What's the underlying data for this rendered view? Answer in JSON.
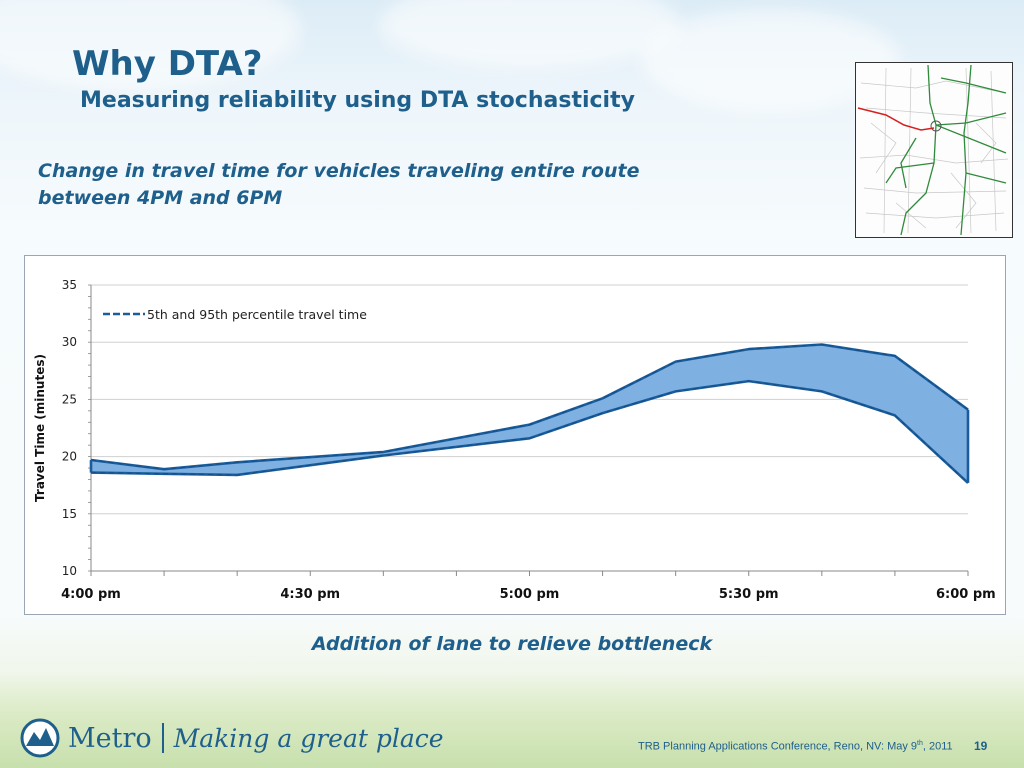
{
  "slide": {
    "title": "Why DTA?",
    "subtitle": "Measuring reliability using DTA stochasticity",
    "caption": "Change in travel time for vehicles traveling entire route between 4PM and 6PM",
    "bottleneck_note": "Addition of lane to relieve bottleneck",
    "footer": {
      "brand": "Metro",
      "tagline": "Making a great place",
      "conference_prefix": "TRB Planning Applications Conference,  Reno, NV: May 9",
      "conference_sup": "th",
      "conference_suffix": ", 2011",
      "page_number": "19"
    },
    "colors": {
      "title": "#1f5f8b",
      "band_fill": "#7fb0e2",
      "band_stroke": "#1a5d9c",
      "map_highlight": "#d62020",
      "map_roads": "#2e8b3a"
    }
  },
  "chart_data": {
    "type": "area",
    "ylabel": "Travel Time (minutes)",
    "ylim": [
      10,
      35
    ],
    "yticks": [
      10,
      15,
      20,
      25,
      30,
      35
    ],
    "xlim": [
      0,
      120
    ],
    "xtick_values": [
      0,
      30,
      60,
      90,
      120
    ],
    "xtick_labels": [
      "4:00 pm",
      "4:30 pm",
      "5:00 pm",
      "5:30 pm",
      "6:00 pm"
    ],
    "legend": {
      "label": "5th and 95th percentile travel time",
      "position": "top-left"
    },
    "grid": true,
    "x": [
      0,
      10,
      20,
      40,
      60,
      70,
      80,
      90,
      100,
      110,
      120
    ],
    "series": [
      {
        "name": "",
        "values": [
          19.7,
          18.9,
          19.5,
          20.4,
          22.8,
          25.1,
          28.3,
          29.4,
          29.8,
          28.8,
          24.1
        ]
      },
      {
        "name": "",
        "values": [
          18.6,
          18.5,
          18.4,
          20.1,
          21.6,
          23.8,
          25.7,
          26.6,
          25.7,
          23.6,
          17.7
        ]
      }
    ]
  }
}
